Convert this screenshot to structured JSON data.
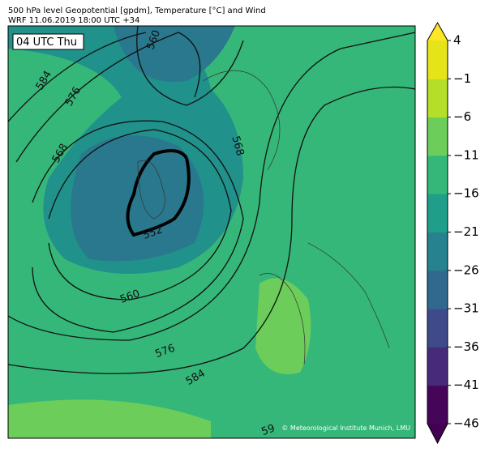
{
  "header": {
    "title": "500 hPa level Geopotential [gpdm], Temperature [°C] and Wind",
    "subtitle": "WRF 11.06.2019 18:00 UTC +34"
  },
  "map": {
    "time_label": "04 UTC Thu",
    "credit": "© Meteorological Institute Munich, LMU",
    "contour_labels": [
      "584",
      "576",
      "568",
      "560",
      "552",
      "560",
      "568",
      "576",
      "584",
      "59"
    ]
  },
  "colorbar": {
    "ticks": [
      4,
      {
        "value": -1,
        "label": "−1"
      },
      {
        "value": -6,
        "label": "−6"
      },
      {
        "value": -11,
        "label": "−11"
      },
      {
        "value": -16,
        "label": "−16"
      },
      {
        "value": -21,
        "label": "−21"
      },
      {
        "value": -26,
        "label": "−26"
      },
      {
        "value": -31,
        "label": "−31"
      },
      {
        "value": -36,
        "label": "−36"
      },
      {
        "value": -41,
        "label": "−41"
      },
      {
        "value": -46,
        "label": "−46"
      }
    ],
    "colors": [
      "#450559",
      "#472a7a",
      "#3e4a89",
      "#31688e",
      "#26828e",
      "#1f9e89",
      "#35b779",
      "#6ccd5a",
      "#b5de2b",
      "#e5e419"
    ],
    "under_color": "#440154",
    "over_color": "#fde725"
  }
}
